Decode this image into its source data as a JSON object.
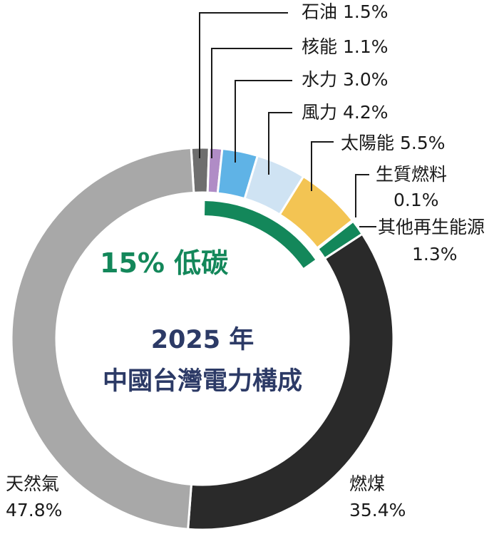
{
  "chart_data": {
    "type": "pie",
    "variant": "donut",
    "title": "2025 年",
    "subtitle": "中國台灣電力構成",
    "annotation": "15% 低碳",
    "slices": [
      {
        "label": "石油",
        "value": 1.5,
        "value_label": "1.5%",
        "color": "#6e6e6e"
      },
      {
        "label": "核能",
        "value": 1.1,
        "value_label": "1.1%",
        "color": "#b08cc6"
      },
      {
        "label": "水力",
        "value": 3.0,
        "value_label": "3.0%",
        "color": "#5fb3e6"
      },
      {
        "label": "風力",
        "value": 4.2,
        "value_label": "4.2%",
        "color": "#cfe3f3"
      },
      {
        "label": "太陽能",
        "value": 5.5,
        "value_label": "5.5%",
        "color": "#f3c453"
      },
      {
        "label": "生質燃料",
        "value": 0.1,
        "value_label": "0.1%",
        "color": "#13875a"
      },
      {
        "label": "其他再生能源",
        "value": 1.3,
        "value_label": "1.3%",
        "color": "#13875a"
      },
      {
        "label": "燃煤",
        "value": 35.4,
        "value_label": "35.4%",
        "color": "#2a2a2a"
      },
      {
        "label": "天然氣",
        "value": 47.8,
        "value_label": "47.8%",
        "color": "#a8a8a8"
      }
    ],
    "low_carbon_share": 15,
    "low_carbon_color": "#13875a",
    "title_color": "#2c3a66"
  }
}
